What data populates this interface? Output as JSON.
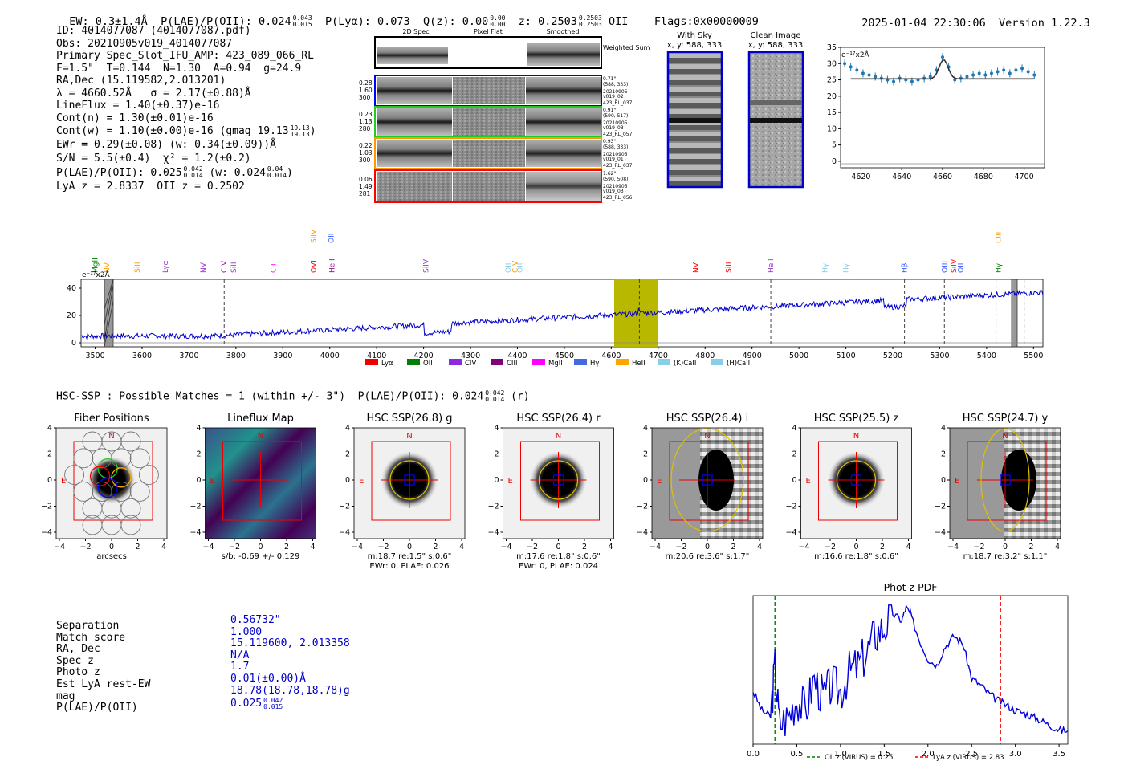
{
  "header": {
    "ew": "EW: 0.3±1.4Å",
    "plae_label": "P(LAE)/P(OII): 0.024",
    "plae_hi": "0.043",
    "plae_lo": "0.015",
    "plya": "P(Lyα): 0.073",
    "qz_label": "Q(z): 0.00",
    "qz_hi": "0.00",
    "qz_lo": "0.00",
    "z_label": "z: 0.2503",
    "z_hi": "0.2503",
    "z_lo": "0.2503",
    "z_line": "OII",
    "flags": "Flags:0x00000009",
    "datetime": "2025-01-04 22:30:06",
    "version": "Version 1.22.3"
  },
  "info": {
    "id": "ID: 4014077087 (4014077087.pdf)",
    "obs": "Obs: 20210905v019_4014077087",
    "primary": "Primary Spec_Slot_IFU_AMP: 423_089_066_RL",
    "fit": "F=1.5\"  T=0.144  N=1.30  A=0.94  g=24.9",
    "radec": "RA,Dec (15.119582,2.013201)",
    "lambda": "λ = 4660.52Å   σ = 2.17(±0.88)Å",
    "lineflux": "LineFlux = 1.40(±0.37)e-16",
    "contn": "Cont(n) = 1.30(±0.01)e-16",
    "contw": "Cont(w) = 1.10(±0.00)e-16 (gmag 19.13",
    "gmag_hi": "19.13",
    "gmag_lo": "19.13",
    "ewr": "EWr = 0.29(±0.08) (w: 0.34(±0.09))Å",
    "sn": "S/N = 5.5(±0.4)  χ² = 1.2(±0.2)",
    "plae2": "P(LAE)/P(OII): 0.025",
    "plae2_hi": "0.042",
    "plae2_lo": "0.014",
    "plae2_w": "(w: 0.024",
    "plae2_w_hi": "0.04",
    "plae2_w_lo": "0.014",
    "lyaz": "LyA z = 2.8337  OII z = 0.2502"
  },
  "cutouts": {
    "col_headers": [
      "2D Spec",
      "Pixel Flat",
      "Smoothed"
    ],
    "weighted_sum": "Weighted Sum",
    "rows": [
      {
        "left": [
          "0.28",
          "1.60",
          "300"
        ],
        "right": [
          "0.71\"",
          "(588, 333)",
          "20210905",
          "v019_02",
          "423_RL_037"
        ],
        "color": "#0000ff"
      },
      {
        "left": [
          "0.23",
          "1.13",
          "280"
        ],
        "right": [
          "0.91\"",
          "(590, 517)",
          "20210905",
          "v019_03",
          "423_RL_057"
        ],
        "color": "#22cc22"
      },
      {
        "left": [
          "0.22",
          "1.03",
          "300"
        ],
        "right": [
          "0.93\"",
          "(588, 333)",
          "20210905",
          "v019_01",
          "423_RL_037"
        ],
        "color": "#ff9900"
      },
      {
        "left": [
          "0.06",
          "1.49",
          "281"
        ],
        "right": [
          "1.62\"",
          "(590, 508)",
          "20210905",
          "v019_03",
          "423_RL_056"
        ],
        "color": "#ff0000"
      }
    ],
    "with_sky_title": "With Sky",
    "with_sky_xy": "x, y: 588, 333",
    "clean_title": "Clean Image",
    "clean_xy": "x, y: 588, 333"
  },
  "zoom_chart": {
    "unit": "e⁻¹⁷x2Å",
    "x_ticks": [
      "4620",
      "4640",
      "4660",
      "4680",
      "4700"
    ],
    "y_ticks": [
      "0",
      "5",
      "10",
      "15",
      "20",
      "25",
      "30",
      "35"
    ]
  },
  "full_spectrum": {
    "unit": "e⁻¹⁷x2Å",
    "x_ticks": [
      "3500",
      "3600",
      "3700",
      "3800",
      "3900",
      "4000",
      "4100",
      "4200",
      "4300",
      "4400",
      "4500",
      "4600",
      "4700",
      "4800",
      "4900",
      "5000",
      "5100",
      "5200",
      "5300",
      "5400",
      "5500"
    ],
    "y_ticks": [
      "0",
      "20",
      "40"
    ],
    "line_labels": [
      {
        "label": "MgII",
        "wl": 3500,
        "color": "#008000"
      },
      {
        "label": "NV",
        "wl": 3525,
        "color": "#ff9900"
      },
      {
        "label": "SiII",
        "wl": 3590,
        "color": "#ff9900"
      },
      {
        "label": "Lyα",
        "wl": 3650,
        "color": "#9933cc"
      },
      {
        "label": "NV",
        "wl": 3730,
        "color": "#9933cc"
      },
      {
        "label": "CIV",
        "wl": 3775,
        "color": "#990099"
      },
      {
        "label": "SiII",
        "wl": 3795,
        "color": "#9933cc"
      },
      {
        "label": "CII",
        "wl": 3880,
        "color": "#ff00ff"
      },
      {
        "label": "OVI",
        "wl": 3965,
        "color": "#ff0000"
      },
      {
        "label": "SiIV",
        "wl": 3965,
        "color": "#ff9900"
      },
      {
        "label": "OII",
        "wl": 4003,
        "color": "#3355ff"
      },
      {
        "label": "HeII",
        "wl": 4005,
        "color": "#990099"
      },
      {
        "label": "SiIV",
        "wl": 4205,
        "color": "#9933cc"
      },
      {
        "label": "OII",
        "wl": 4380,
        "color": "#87ceeb"
      },
      {
        "label": "CIV",
        "wl": 4395,
        "color": "#ff9900"
      },
      {
        "label": "OII",
        "wl": 4405,
        "color": "#87ceeb"
      },
      {
        "label": "NV",
        "wl": 4780,
        "color": "#ff0000"
      },
      {
        "label": "SiII",
        "wl": 4850,
        "color": "#ff0000"
      },
      {
        "label": "HeII",
        "wl": 4940,
        "color": "#9933cc"
      },
      {
        "label": "Hγ",
        "wl": 5055,
        "color": "#87ceeb"
      },
      {
        "label": "Hγ",
        "wl": 5100,
        "color": "#87ceeb"
      },
      {
        "label": "Hβ",
        "wl": 5225,
        "color": "#3355ff"
      },
      {
        "label": "OIII",
        "wl": 5310,
        "color": "#3355ff"
      },
      {
        "label": "OII",
        "wl": 5345,
        "color": "#3355ff"
      },
      {
        "label": "SiIV",
        "wl": 5330,
        "color": "#ff0000"
      },
      {
        "label": "Hγ",
        "wl": 5425,
        "color": "#008000"
      },
      {
        "label": "CIII",
        "wl": 5425,
        "color": "#ff9900"
      }
    ],
    "legend": [
      {
        "label": "Lyα",
        "color": "#ee0000"
      },
      {
        "label": "OII",
        "color": "#008000"
      },
      {
        "label": "CIV",
        "color": "#8a2be2"
      },
      {
        "label": "CIII",
        "color": "#800080"
      },
      {
        "label": "MgII",
        "color": "#ff00ff"
      },
      {
        "label": "Hγ",
        "color": "#4169e1"
      },
      {
        "label": "HeII",
        "color": "#ffa500"
      },
      {
        "label": "(K)CaII",
        "color": "#87ceeb"
      },
      {
        "label": "(H)CaII",
        "color": "#87ceeb"
      }
    ]
  },
  "hsc": {
    "title": "HSC-SSP : Possible Matches = 1 (within +/- 3\")  P(LAE)/P(OII): 0.024",
    "title_hi": "0.042",
    "title_lo": "0.014",
    "title_band": "(r)",
    "panels": [
      {
        "title": "Fiber Positions",
        "sub1": "arcsecs",
        "sub2": ""
      },
      {
        "title": "Lineflux Map",
        "sub1": "s/b: -0.69 +/- 0.129",
        "sub2": ""
      },
      {
        "title": "HSC SSP(26.8) g",
        "sub1": "m:18.7  re:1.5\"  s:0.6\"",
        "sub2": "EWr: 0, PLAE: 0.026"
      },
      {
        "title": "HSC SSP(26.4) r",
        "sub1": "m:17.6  re:1.8\"  s:0.6\"",
        "sub2": "EWr: 0, PLAE: 0.024"
      },
      {
        "title": "HSC SSP(26.4) i",
        "sub1": "m:20.6  re:3.6\"  s:1.7\"",
        "sub2": ""
      },
      {
        "title": "HSC SSP(25.5) z",
        "sub1": "m:16.6  re:1.8\"  s:0.6\"",
        "sub2": ""
      },
      {
        "title": "HSC SSP(24.7) y",
        "sub1": "m:18.7  re:3.2\"  s:1.1\"",
        "sub2": ""
      }
    ],
    "compass_n": "N",
    "compass_e": "E",
    "axis_ticks": [
      "-4",
      "-2",
      "0",
      "2",
      "4"
    ]
  },
  "match": {
    "labels": [
      "Separation",
      "Match score",
      "RA, Dec",
      "Spec z",
      "Photo z",
      "Est LyA rest-EW",
      "mag",
      "P(LAE)/P(OII)"
    ],
    "values": [
      "0.56732\"",
      "1.000",
      "15.119600, 2.013358",
      "N/A",
      "1.7",
      "0.01(±0.00)Å",
      "18.78(18.78,18.78)g",
      "0.025"
    ],
    "plae_hi": "0.042",
    "plae_lo": "0.015"
  },
  "chart_data": [
    {
      "type": "line",
      "title": "Phot z PDF",
      "x_ticks": [
        "0.0",
        "0.5",
        "1.0",
        "1.5",
        "2.0",
        "2.5",
        "3.0",
        "3.5"
      ],
      "xlim": [
        0,
        3.6
      ],
      "x": [
        0.0,
        0.1,
        0.2,
        0.25,
        0.3,
        0.4,
        0.5,
        0.6,
        0.7,
        0.8,
        0.9,
        1.0,
        1.1,
        1.2,
        1.3,
        1.4,
        1.5,
        1.6,
        1.7,
        1.75,
        1.8,
        1.9,
        2.0,
        2.1,
        2.2,
        2.3,
        2.4,
        2.5,
        2.6,
        2.7,
        2.8,
        2.9,
        3.0,
        3.1,
        3.2,
        3.3,
        3.4,
        3.5,
        3.6
      ],
      "y": [
        0.35,
        0.2,
        0.15,
        0.55,
        0.1,
        0.15,
        0.3,
        0.2,
        0.45,
        0.3,
        0.4,
        0.35,
        0.5,
        0.55,
        0.65,
        0.8,
        0.85,
        0.95,
        0.9,
        1.0,
        0.95,
        0.75,
        0.6,
        0.55,
        0.7,
        0.78,
        0.72,
        0.45,
        0.4,
        0.33,
        0.28,
        0.24,
        0.2,
        0.18,
        0.15,
        0.12,
        0.08,
        0.05,
        0.04
      ],
      "vlines": [
        {
          "x": 0.25,
          "label": "OII z (VIRUS) = 0.25",
          "color": "#008000"
        },
        {
          "x": 2.83,
          "label": "LyA z (VIRUS) = 2.83",
          "color": "#ee0000"
        }
      ]
    },
    {
      "type": "line",
      "title": "Zoomed emission line",
      "xlim": [
        4610,
        4710
      ],
      "ylim": [
        -2,
        35
      ],
      "x": [
        4612,
        4615,
        4618,
        4621,
        4624,
        4627,
        4630,
        4633,
        4636,
        4639,
        4642,
        4645,
        4648,
        4651,
        4654,
        4657,
        4660,
        4663,
        4666,
        4669,
        4672,
        4675,
        4678,
        4681,
        4684,
        4687,
        4690,
        4693,
        4696,
        4699,
        4702,
        4705
      ],
      "y": [
        30,
        29,
        28,
        27,
        26.5,
        26,
        25.5,
        25,
        24.5,
        25.5,
        25,
        24.5,
        25,
        25.5,
        26,
        28,
        32,
        29,
        25,
        25.5,
        26,
        26.5,
        27,
        26.5,
        27,
        27.5,
        28,
        27,
        28,
        28.5,
        27.5,
        26.5
      ],
      "fit_baseline": 25.3,
      "fit_peak": 31.2,
      "fit_center": 4660.5
    }
  ]
}
